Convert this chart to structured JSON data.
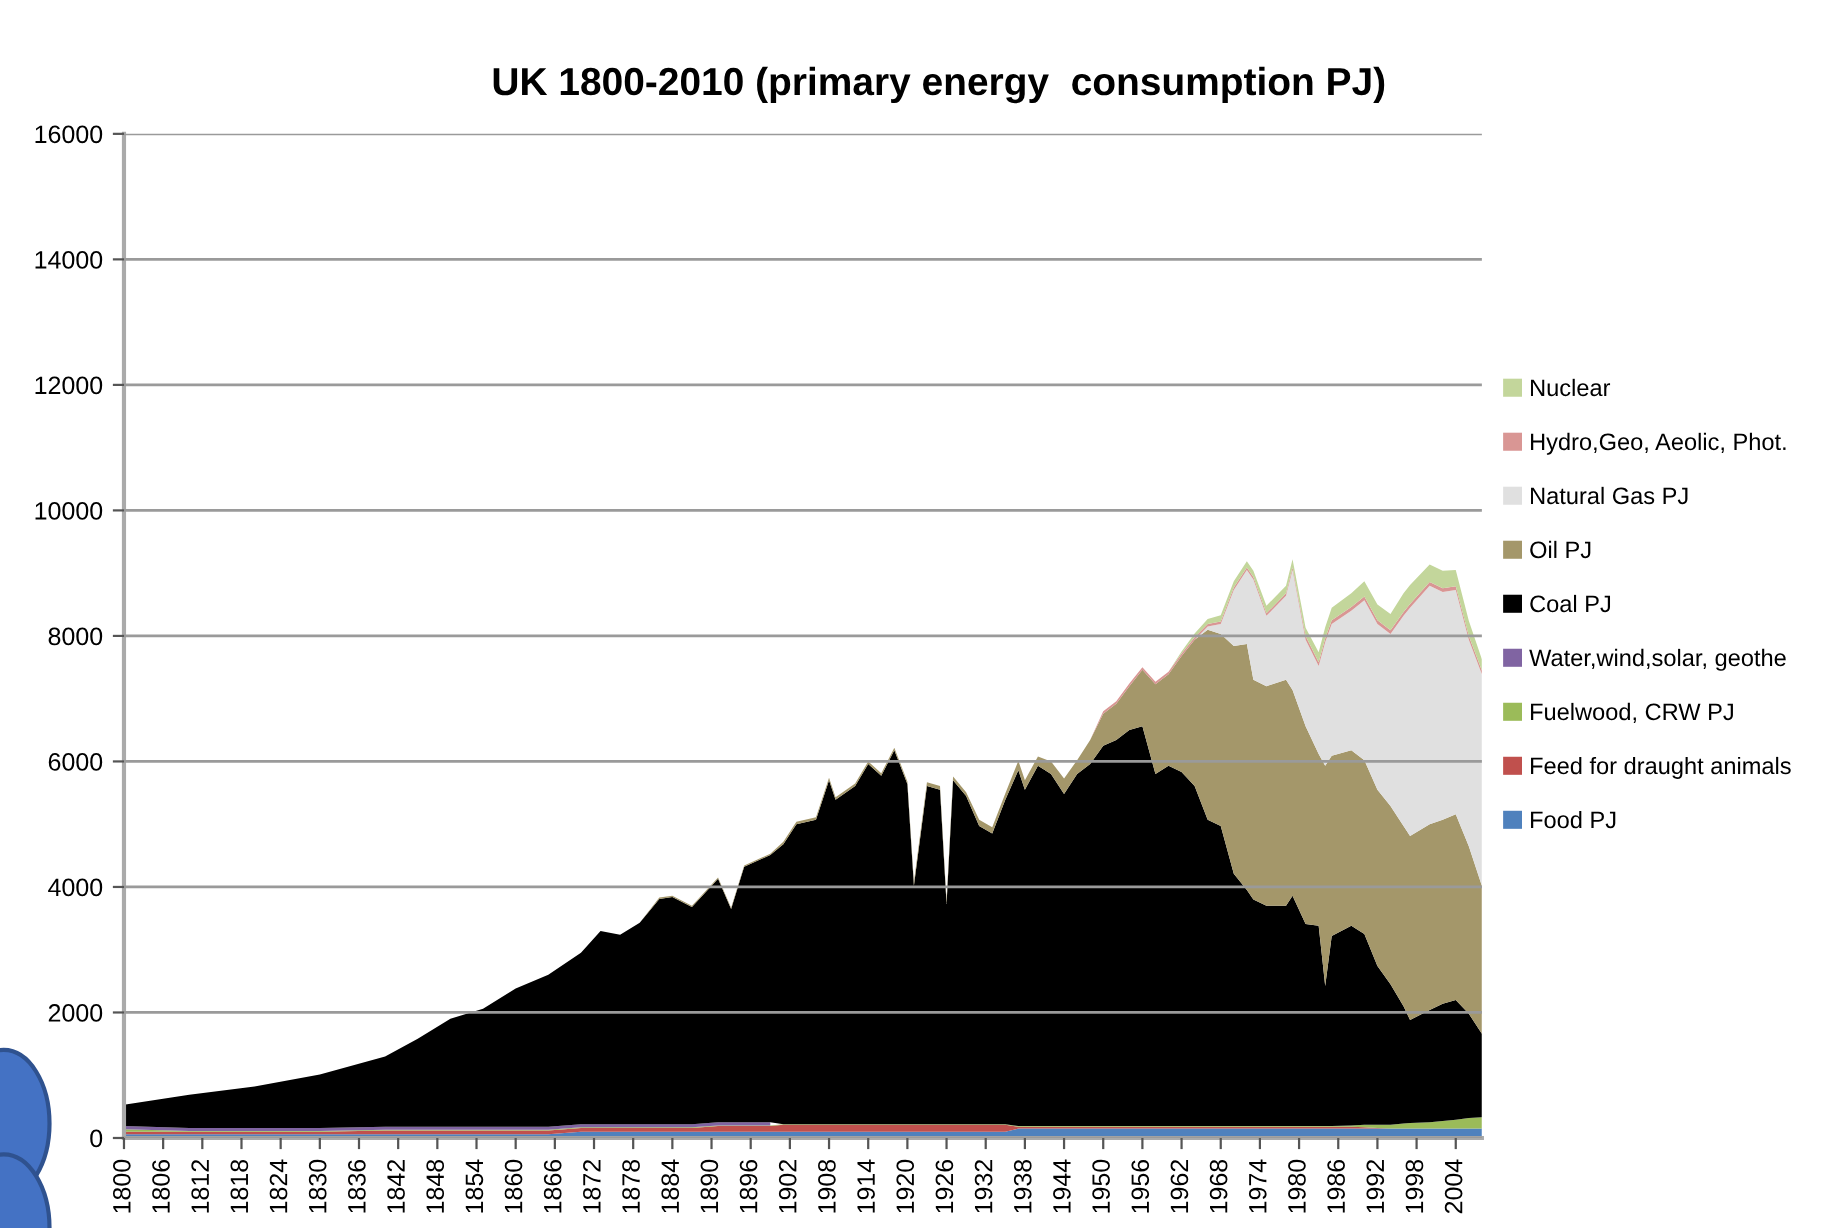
{
  "chart_data": {
    "type": "area",
    "stacked": true,
    "title": "UK 1800-2010 (primary energy  consumption PJ)",
    "x": [
      1800,
      1810,
      1820,
      1830,
      1840,
      1845,
      1850,
      1855,
      1860,
      1865,
      1870,
      1873,
      1876,
      1879,
      1882,
      1884,
      1887,
      1891,
      1893,
      1895,
      1899,
      1901,
      1903,
      1906,
      1908,
      1909,
      1912,
      1914,
      1916,
      1918,
      1920,
      1921,
      1923,
      1925,
      1926,
      1927,
      1929,
      1931,
      1933,
      1935,
      1937,
      1938,
      1940,
      1942,
      1944,
      1946,
      1948,
      1950,
      1952,
      1954,
      1956,
      1958,
      1960,
      1962,
      1964,
      1966,
      1968,
      1970,
      1972,
      1973,
      1975,
      1978,
      1979,
      1981,
      1983,
      1984,
      1985,
      1988,
      1990,
      1992,
      1994,
      1996,
      1997,
      2000,
      2002,
      2004,
      2006,
      2008
    ],
    "series": [
      {
        "name": "Food PJ",
        "color": "#4f81bd",
        "values": [
          60,
          60,
          60,
          60,
          60,
          60,
          60,
          60,
          60,
          60,
          100,
          100,
          100,
          100,
          100,
          100,
          100,
          100,
          100,
          100,
          100,
          100,
          100,
          100,
          100,
          100,
          100,
          100,
          100,
          100,
          100,
          100,
          100,
          100,
          100,
          100,
          100,
          100,
          100,
          100,
          150,
          150,
          150,
          150,
          150,
          150,
          150,
          150,
          150,
          150,
          150,
          150,
          150,
          150,
          150,
          150,
          150,
          150,
          150,
          150,
          150,
          150,
          150,
          150,
          150,
          150,
          150,
          150,
          150,
          150,
          150,
          150,
          150,
          150,
          150,
          150,
          150,
          150
        ]
      },
      {
        "name": "Feed for draught animals",
        "color": "#c0504d",
        "values": [
          40,
          40,
          40,
          40,
          60,
          60,
          60,
          60,
          60,
          60,
          60,
          60,
          60,
          60,
          60,
          60,
          60,
          90,
          90,
          90,
          90,
          110,
          110,
          110,
          110,
          110,
          110,
          110,
          110,
          110,
          110,
          110,
          110,
          110,
          110,
          110,
          110,
          110,
          110,
          110,
          30,
          30,
          30,
          30,
          30,
          30,
          30,
          30,
          30,
          30,
          30,
          30,
          30,
          30,
          30,
          30,
          30,
          30,
          30,
          30,
          30,
          30,
          30,
          30,
          30,
          30,
          30,
          30,
          20,
          10,
          0,
          0,
          0,
          0,
          0,
          0,
          0,
          0
        ]
      },
      {
        "name": "Fuelwood, CRW PJ",
        "color": "#9bbb59",
        "values": [
          40,
          10,
          10,
          10,
          10,
          10,
          10,
          10,
          10,
          10,
          10,
          10,
          10,
          10,
          10,
          10,
          10,
          10,
          10,
          10,
          10,
          10,
          10,
          10,
          10,
          10,
          10,
          10,
          10,
          10,
          10,
          10,
          10,
          10,
          10,
          10,
          10,
          10,
          10,
          10,
          10,
          10,
          10,
          10,
          10,
          10,
          10,
          10,
          10,
          10,
          10,
          10,
          10,
          10,
          10,
          10,
          10,
          10,
          10,
          10,
          10,
          10,
          10,
          10,
          10,
          10,
          10,
          20,
          40,
          50,
          60,
          80,
          90,
          100,
          120,
          140,
          170,
          180
        ]
      },
      {
        "name": "Water,wind,solar, geothe",
        "color": "#8064a2",
        "values": [
          50,
          50,
          50,
          50,
          50,
          50,
          50,
          50,
          50,
          50,
          50,
          50,
          50,
          50,
          50,
          50,
          50,
          50,
          50,
          50,
          50,
          null,
          null,
          null,
          null,
          null,
          null,
          null,
          null,
          null,
          null,
          null,
          null,
          null,
          null,
          null,
          null,
          null,
          null,
          null,
          null,
          null,
          null,
          null,
          null,
          null,
          null,
          null,
          null,
          null,
          null,
          null,
          null,
          null,
          null,
          null,
          null,
          null,
          null,
          null,
          null,
          null,
          null,
          null,
          null,
          null,
          null,
          null,
          null,
          null,
          null,
          null,
          null,
          null,
          null,
          null,
          null,
          null
        ]
      },
      {
        "name": "Coal PJ",
        "color": "#000000",
        "values": [
          340,
          530,
          660,
          850,
          1120,
          1400,
          1720,
          1880,
          2200,
          2420,
          2730,
          3080,
          3020,
          3210,
          3590,
          3620,
          3460,
          3880,
          3400,
          4070,
          4260,
          4460,
          4780,
          4850,
          5480,
          5170,
          5390,
          5740,
          5550,
          5960,
          5420,
          3800,
          5390,
          5330,
          3510,
          5480,
          5230,
          4750,
          4630,
          5170,
          5670,
          5360,
          5740,
          5610,
          5290,
          5610,
          5770,
          6060,
          6150,
          6310,
          6370,
          5610,
          5740,
          5640,
          5420,
          4880,
          4780,
          4020,
          3760,
          3610,
          3510,
          3510,
          3670,
          3220,
          3190,
          2230,
          3030,
          3180,
          3040,
          2530,
          2240,
          1870,
          1640,
          1790,
          1870,
          1910,
          1660,
          1330
        ]
      },
      {
        "name": "Oil PJ",
        "color": "#a4976a",
        "values": [
          0,
          0,
          0,
          0,
          0,
          0,
          0,
          0,
          0,
          0,
          0,
          0,
          0,
          0,
          20,
          20,
          20,
          20,
          20,
          20,
          20,
          40,
          40,
          40,
          40,
          40,
          40,
          40,
          40,
          40,
          40,
          60,
          60,
          60,
          60,
          60,
          60,
          100,
          100,
          100,
          150,
          150,
          150,
          200,
          250,
          220,
          380,
          510,
          580,
          700,
          900,
          1430,
          1460,
          1850,
          2330,
          3030,
          3060,
          3630,
          3920,
          3500,
          3500,
          3600,
          3280,
          3150,
          2740,
          3510,
          2870,
          2800,
          2770,
          2810,
          2840,
          2870,
          2930,
          2960,
          2930,
          2960,
          2670,
          2360
        ]
      },
      {
        "name": "Natural Gas PJ",
        "color": "#e0e0e0",
        "values": [
          null,
          null,
          null,
          null,
          null,
          null,
          null,
          null,
          null,
          null,
          null,
          null,
          null,
          null,
          null,
          null,
          null,
          null,
          null,
          null,
          null,
          null,
          null,
          null,
          null,
          null,
          null,
          null,
          null,
          null,
          null,
          null,
          null,
          null,
          null,
          null,
          null,
          null,
          null,
          null,
          null,
          null,
          null,
          null,
          null,
          null,
          null,
          null,
          null,
          null,
          null,
          null,
          null,
          null,
          0,
          50,
          160,
          890,
          1180,
          1600,
          1120,
          1340,
          1910,
          1380,
          1400,
          1970,
          2100,
          2220,
          2550,
          2640,
          2740,
          3350,
          3640,
          3800,
          3630,
          3570,
          3290,
          3370
        ]
      },
      {
        "name": "Hydro,Geo, Aeolic, Phot.",
        "color": "#d99694",
        "values": [
          null,
          null,
          null,
          null,
          null,
          null,
          null,
          null,
          null,
          null,
          null,
          null,
          null,
          null,
          null,
          null,
          null,
          null,
          null,
          null,
          null,
          null,
          null,
          null,
          null,
          null,
          null,
          null,
          null,
          null,
          null,
          null,
          null,
          null,
          null,
          null,
          null,
          null,
          null,
          null,
          null,
          null,
          null,
          null,
          null,
          null,
          0,
          40,
          40,
          40,
          40,
          40,
          40,
          40,
          40,
          40,
          40,
          40,
          40,
          40,
          40,
          40,
          40,
          60,
          60,
          60,
          60,
          60,
          60,
          60,
          60,
          60,
          60,
          60,
          60,
          60,
          60,
          60
        ]
      },
      {
        "name": "Nuclear",
        "color": "#c3d69b",
        "values": [
          null,
          null,
          null,
          null,
          null,
          null,
          null,
          null,
          null,
          null,
          null,
          null,
          null,
          null,
          null,
          null,
          null,
          null,
          null,
          null,
          null,
          null,
          null,
          null,
          null,
          null,
          null,
          null,
          null,
          null,
          null,
          null,
          null,
          null,
          null,
          null,
          null,
          null,
          null,
          null,
          null,
          null,
          null,
          null,
          null,
          null,
          null,
          null,
          null,
          null,
          null,
          null,
          0,
          30,
          60,
          80,
          100,
          100,
          100,
          100,
          120,
          120,
          130,
          130,
          160,
          180,
          200,
          220,
          240,
          250,
          260,
          300,
          300,
          280,
          280,
          260,
          240,
          180
        ]
      }
    ],
    "xlim": [
      1800,
      2008
    ],
    "xticks": [
      1800,
      1806,
      1812,
      1818,
      1824,
      1830,
      1836,
      1842,
      1848,
      1854,
      1860,
      1866,
      1872,
      1878,
      1884,
      1890,
      1896,
      1902,
      1908,
      1914,
      1920,
      1926,
      1932,
      1938,
      1944,
      1950,
      1956,
      1962,
      1968,
      1974,
      1980,
      1986,
      1992,
      1998,
      2004
    ],
    "ylim": [
      0,
      16000
    ],
    "yticks": [
      0,
      2000,
      4000,
      6000,
      8000,
      10000,
      12000,
      14000,
      16000
    ],
    "grid": "y",
    "legend": "right"
  }
}
